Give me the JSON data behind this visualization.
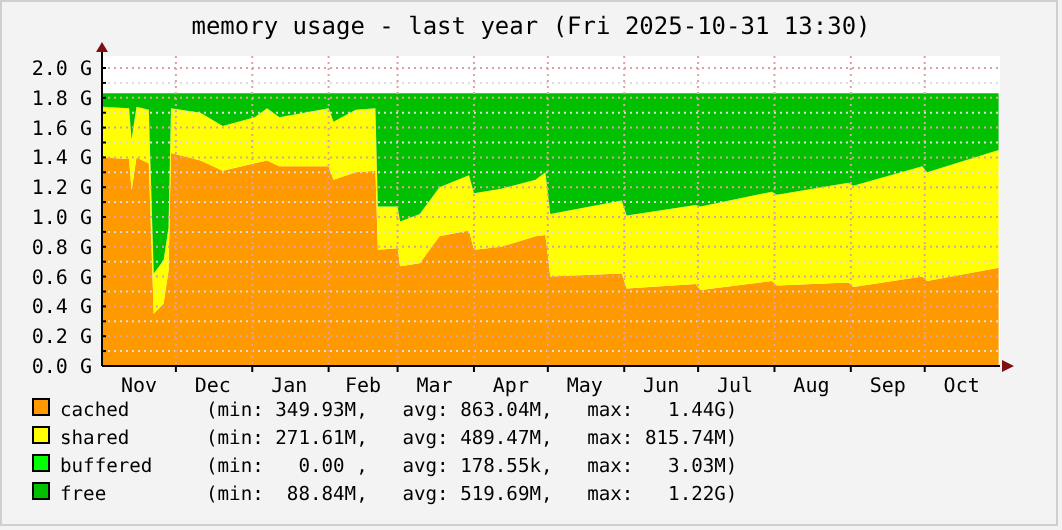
{
  "chart_data": {
    "type": "area",
    "stacked": true,
    "title": "memory usage - last year (Fri 2025-10-31 13:30)",
    "x": [
      "2024-11-01",
      "2024-11-12",
      "2024-11-13",
      "2024-11-15",
      "2024-11-20",
      "2024-11-22",
      "2024-11-26",
      "2024-11-28",
      "2024-11-29",
      "2024-12-11",
      "2024-12-20",
      "2025-01-02",
      "2025-01-07",
      "2025-01-12",
      "2025-02-01",
      "2025-02-03",
      "2025-02-12",
      "2025-02-20",
      "2025-02-21",
      "2025-03-01",
      "2025-03-02",
      "2025-03-10",
      "2025-03-18",
      "2025-03-30",
      "2025-04-01",
      "2025-04-12",
      "2025-04-26",
      "2025-04-30",
      "2025-05-02",
      "2025-05-31",
      "2025-06-02",
      "2025-06-30",
      "2025-07-02",
      "2025-07-31",
      "2025-08-02",
      "2025-08-31",
      "2025-09-02",
      "2025-09-30",
      "2025-10-02",
      "2025-10-31"
    ],
    "series": [
      {
        "name": "cached",
        "color": "#ff9900",
        "values": [
          1.4,
          1.39,
          1.18,
          1.4,
          1.36,
          0.35,
          0.42,
          0.64,
          1.43,
          1.38,
          1.31,
          1.36,
          1.38,
          1.34,
          1.34,
          1.25,
          1.3,
          1.31,
          0.78,
          0.79,
          0.67,
          0.69,
          0.87,
          0.91,
          0.78,
          0.8,
          0.87,
          0.88,
          0.6,
          0.62,
          0.52,
          0.55,
          0.51,
          0.57,
          0.54,
          0.56,
          0.53,
          0.6,
          0.57,
          0.66
        ]
      },
      {
        "name": "shared",
        "color": "#ffff00",
        "values": [
          0.34,
          0.34,
          0.34,
          0.34,
          0.36,
          0.27,
          0.29,
          0.29,
          0.3,
          0.32,
          0.3,
          0.31,
          0.35,
          0.33,
          0.39,
          0.39,
          0.42,
          0.42,
          0.29,
          0.28,
          0.3,
          0.33,
          0.33,
          0.37,
          0.38,
          0.39,
          0.38,
          0.42,
          0.42,
          0.49,
          0.49,
          0.53,
          0.56,
          0.6,
          0.61,
          0.67,
          0.68,
          0.74,
          0.73,
          0.79
        ]
      },
      {
        "name": "buffered",
        "color": "#00ff00",
        "values": [
          null,
          null,
          null,
          null,
          null,
          null,
          null,
          null,
          null,
          null,
          null,
          null,
          null,
          null,
          null,
          null,
          null,
          null,
          null,
          null,
          null,
          null,
          null,
          null,
          null,
          null,
          null,
          null,
          null,
          null,
          null,
          null,
          null,
          null,
          null,
          null,
          null,
          null,
          null,
          null
        ]
      },
      {
        "name": "free",
        "color": "#00c000",
        "values": [
          0.09,
          0.1,
          0.31,
          0.09,
          0.11,
          1.21,
          1.12,
          0.9,
          0.1,
          0.13,
          0.22,
          0.16,
          0.1,
          0.16,
          0.1,
          0.19,
          0.11,
          0.1,
          0.76,
          0.76,
          0.86,
          0.81,
          0.63,
          0.55,
          0.67,
          0.64,
          0.58,
          0.53,
          0.81,
          0.72,
          0.82,
          0.75,
          0.76,
          0.66,
          0.68,
          0.6,
          0.62,
          0.49,
          0.53,
          0.38
        ]
      }
    ],
    "xlim": [
      "2024-11-01",
      "2025-10-31T13:30"
    ],
    "xticks": [
      {
        "value": "2024-11-16",
        "label": "Nov"
      },
      {
        "value": "2024-12-01",
        "label": null
      },
      {
        "value": "2024-12-16",
        "label": "Dec"
      },
      {
        "value": "2025-01-01",
        "label": null
      },
      {
        "value": "2025-01-16",
        "label": "Jan"
      },
      {
        "value": "2025-02-01",
        "label": null
      },
      {
        "value": "2025-02-15",
        "label": "Feb"
      },
      {
        "value": "2025-03-01",
        "label": null
      },
      {
        "value": "2025-03-16",
        "label": "Mar"
      },
      {
        "value": "2025-04-01",
        "label": null
      },
      {
        "value": "2025-04-16",
        "label": "Apr"
      },
      {
        "value": "2025-05-01",
        "label": null
      },
      {
        "value": "2025-05-16",
        "label": "May"
      },
      {
        "value": "2025-06-01",
        "label": null
      },
      {
        "value": "2025-06-16",
        "label": "Jun"
      },
      {
        "value": "2025-07-01",
        "label": null
      },
      {
        "value": "2025-07-16",
        "label": "Jul"
      },
      {
        "value": "2025-08-01",
        "label": null
      },
      {
        "value": "2025-08-16",
        "label": "Aug"
      },
      {
        "value": "2025-09-01",
        "label": null
      },
      {
        "value": "2025-09-16",
        "label": "Sep"
      },
      {
        "value": "2025-10-01",
        "label": null
      },
      {
        "value": "2025-10-16",
        "label": "Oct"
      }
    ],
    "ylim": [
      0,
      2.0
    ],
    "yticks": [
      {
        "value": 0,
        "label": "0.0 G"
      },
      {
        "value": 0.1,
        "label": null
      },
      {
        "value": 0.2,
        "label": "0.2 G"
      },
      {
        "value": 0.3,
        "label": null
      },
      {
        "value": 0.4,
        "label": "0.4 G"
      },
      {
        "value": 0.5,
        "label": null
      },
      {
        "value": 0.6,
        "label": "0.6 G"
      },
      {
        "value": 0.7,
        "label": null
      },
      {
        "value": 0.8,
        "label": "0.8 G"
      },
      {
        "value": 0.9,
        "label": null
      },
      {
        "value": 1.0,
        "label": "1.0 G"
      },
      {
        "value": 1.1,
        "label": null
      },
      {
        "value": 1.2,
        "label": "1.2 G"
      },
      {
        "value": 1.3,
        "label": null
      },
      {
        "value": 1.4,
        "label": "1.4 G"
      },
      {
        "value": 1.5,
        "label": null
      },
      {
        "value": 1.6,
        "label": "1.6 G"
      },
      {
        "value": 1.7,
        "label": null
      },
      {
        "value": 1.8,
        "label": "1.8 G"
      },
      {
        "value": 1.9,
        "label": null
      },
      {
        "value": 2.0,
        "label": "2.0 G"
      }
    ],
    "grid": true,
    "legend": "bottom",
    "annotations": [
      "(min: 349.93M,   avg: 863.04M,   max:   1.44G)",
      "(min: 271.61M,   avg: 489.47M,   max: 815.74M)",
      "(min:   0.00 ,   avg: 178.55k,   max:   3.03M)",
      "(min:  88.84M,   avg: 519.69M,   max:   1.22G)"
    ]
  }
}
